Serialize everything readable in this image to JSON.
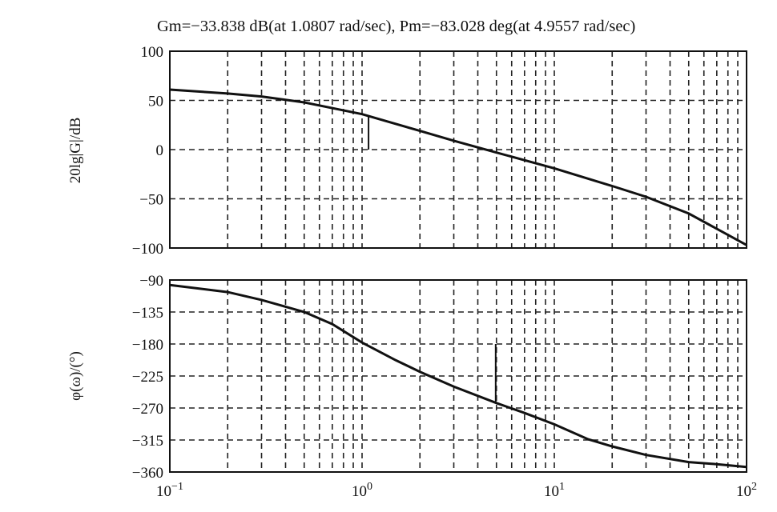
{
  "chart_data": [
    {
      "type": "line",
      "title": "Gm=−33.838 dB(at 1.0807 rad/sec), Pm=−83.028 deg(at 4.9557 rad/sec)",
      "xscale": "log",
      "xlim": [
        0.1,
        100
      ],
      "ylabel": "20lg|G|/dB",
      "ylim": [
        -100,
        100
      ],
      "yticks": [
        "100",
        "50",
        "0",
        "−50",
        "−100"
      ],
      "ytick_values": [
        100,
        50,
        0,
        -50,
        -100
      ],
      "grid": true,
      "series": [
        {
          "x": [
            0.1,
            0.2,
            0.3,
            0.5,
            1.0,
            2.0,
            3.0,
            5.0,
            10,
            20,
            30,
            50,
            100
          ],
          "values": [
            61,
            57,
            54,
            48,
            36,
            19,
            9,
            -3,
            -19,
            -37,
            -48,
            -65,
            -97
          ]
        }
      ],
      "markers": [
        {
          "x": 1.0807,
          "y_from": 0,
          "y_to": 34
        }
      ]
    },
    {
      "type": "line",
      "xscale": "log",
      "xlim": [
        0.1,
        100
      ],
      "ylabel": "φ(ω)/(°)",
      "ylim": [
        -360,
        -90
      ],
      "yticks": [
        "−90",
        "−135",
        "−180",
        "−225",
        "−270",
        "−315",
        "−360"
      ],
      "ytick_values": [
        -90,
        -135,
        -180,
        -225,
        -270,
        -315,
        -360
      ],
      "xticks": [
        {
          "base": "10",
          "exp": "−1",
          "value": 0.1
        },
        {
          "base": "10",
          "exp": "0",
          "value": 1
        },
        {
          "base": "10",
          "exp": "1",
          "value": 10
        },
        {
          "base": "10",
          "exp": "2",
          "value": 100
        }
      ],
      "grid": true,
      "series": [
        {
          "x": [
            0.1,
            0.2,
            0.3,
            0.5,
            0.7,
            1.0,
            1.5,
            2.0,
            3.0,
            5.0,
            7.0,
            10,
            15,
            20,
            30,
            50,
            70,
            100
          ],
          "values": [
            -97,
            -107,
            -118,
            -135,
            -152,
            -178,
            -203,
            -219,
            -240,
            -263,
            -277,
            -293,
            -314,
            -324,
            -336,
            -346,
            -349,
            -353
          ]
        }
      ],
      "markers": [
        {
          "x": 4.9557,
          "y_from": -180,
          "y_to": -263
        }
      ]
    }
  ]
}
